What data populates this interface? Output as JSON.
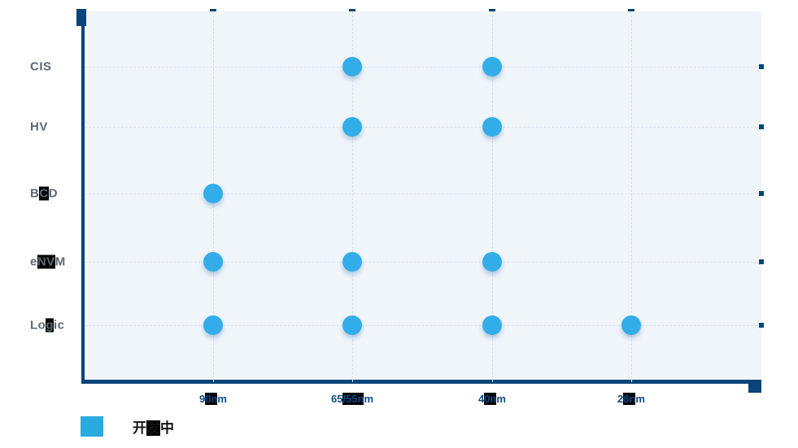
{
  "chart_data": {
    "type": "scatter",
    "title": "",
    "xlabel": "",
    "ylabel": "",
    "x_categories": [
      "90nm",
      "65/55nm",
      "40nm",
      "28nm"
    ],
    "y_categories": [
      "CIS",
      "HV",
      "BCD",
      "eNVM",
      "Logic"
    ],
    "series": [
      {
        "name": "开发中",
        "color": "#29ABE2",
        "points": [
          {
            "x": "65/55nm",
            "y": "CIS"
          },
          {
            "x": "40nm",
            "y": "CIS"
          },
          {
            "x": "65/55nm",
            "y": "HV"
          },
          {
            "x": "40nm",
            "y": "HV"
          },
          {
            "x": "90nm",
            "y": "BCD"
          },
          {
            "x": "90nm",
            "y": "eNVM"
          },
          {
            "x": "65/55nm",
            "y": "eNVM"
          },
          {
            "x": "40nm",
            "y": "eNVM"
          },
          {
            "x": "90nm",
            "y": "Logic"
          },
          {
            "x": "65/55nm",
            "y": "Logic"
          },
          {
            "x": "40nm",
            "y": "Logic"
          },
          {
            "x": "28nm",
            "y": "Logic"
          }
        ]
      }
    ],
    "legend_position": "bottom-left",
    "grid": "dashed"
  },
  "legend": {
    "label": "开发中",
    "color": "#29ABE2"
  },
  "colors": {
    "axis": "#0A4478",
    "plot_background": "#F0F5FA",
    "gridline": "#D9E1EB",
    "point": "#32ADE9",
    "x_label_text": "#0C4A86",
    "y_label_text": "#5E6770"
  }
}
